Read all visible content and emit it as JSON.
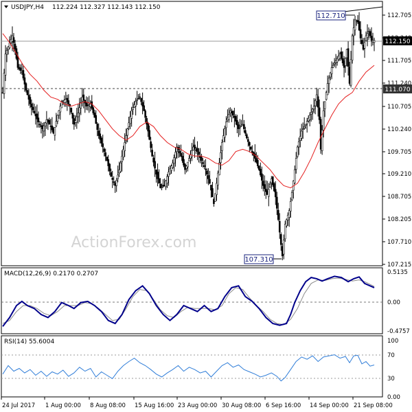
{
  "chart_data": {
    "type": "candlestick",
    "symbol_header": "USDJPY,H4",
    "ohlc": "112.224 112.327 112.143 112.150",
    "watermark": "ActionForex.com",
    "colors": {
      "price": "#000000",
      "ma": "#e41f1f",
      "macd": "#00008b",
      "macd_signal": "#8a8a8a",
      "rsi": "#2f7dd8",
      "horizontal_lines": "#555555",
      "label_bg": "#ffffff",
      "frame": "#000000"
    },
    "x_labels": [
      "24 Jul 2017",
      "1 Aug 00:00",
      "8 Aug 08:00",
      "15 Aug 16:00",
      "23 Aug 00:00",
      "30 Aug 08:00",
      "6 Sep 16:00",
      "14 Sep 00:00",
      "21 Sep 08:00"
    ],
    "price_panel": {
      "ylim": [
        107.215,
        112.705
      ],
      "y_ticks": [
        "112.705",
        "112.240",
        "111.705",
        "111.240",
        "110.705",
        "110.240",
        "109.705",
        "109.210",
        "108.705",
        "108.205",
        "107.710",
        "107.215"
      ],
      "current_price": "112.150",
      "support_level": "111.070",
      "high_label": "112.710",
      "low_label": "107.310",
      "close_path": [
        [
          0,
          111.0
        ],
        [
          4,
          111.85
        ],
        [
          9,
          112.05
        ],
        [
          14,
          112.25
        ],
        [
          18,
          111.95
        ],
        [
          22,
          111.55
        ],
        [
          28,
          111.45
        ],
        [
          34,
          111.05
        ],
        [
          40,
          110.75
        ],
        [
          46,
          110.55
        ],
        [
          52,
          110.35
        ],
        [
          58,
          110.2
        ],
        [
          64,
          110.4
        ],
        [
          70,
          110.25
        ],
        [
          74,
          110.1
        ],
        [
          80,
          110.5
        ],
        [
          86,
          110.8
        ],
        [
          92,
          110.85
        ],
        [
          98,
          110.7
        ],
        [
          104,
          110.3
        ],
        [
          110,
          110.55
        ],
        [
          116,
          110.9
        ],
        [
          122,
          110.7
        ],
        [
          128,
          110.75
        ],
        [
          134,
          110.45
        ],
        [
          140,
          110.05
        ],
        [
          146,
          109.8
        ],
        [
          152,
          109.5
        ],
        [
          158,
          109.15
        ],
        [
          164,
          108.95
        ],
        [
          170,
          109.3
        ],
        [
          176,
          109.75
        ],
        [
          182,
          110.2
        ],
        [
          188,
          110.6
        ],
        [
          194,
          110.8
        ],
        [
          200,
          110.9
        ],
        [
          206,
          110.6
        ],
        [
          212,
          110.15
        ],
        [
          218,
          109.6
        ],
        [
          224,
          109.2
        ],
        [
          230,
          108.9
        ],
        [
          236,
          108.95
        ],
        [
          242,
          109.25
        ],
        [
          248,
          109.45
        ],
        [
          254,
          109.8
        ],
        [
          260,
          109.6
        ],
        [
          266,
          109.3
        ],
        [
          272,
          109.55
        ],
        [
          278,
          109.8
        ],
        [
          284,
          109.7
        ],
        [
          290,
          109.5
        ],
        [
          296,
          109.3
        ],
        [
          302,
          109.0
        ],
        [
          308,
          108.55
        ],
        [
          312,
          109.0
        ],
        [
          316,
          109.45
        ],
        [
          320,
          109.9
        ],
        [
          326,
          110.35
        ],
        [
          332,
          110.6
        ],
        [
          338,
          110.45
        ],
        [
          344,
          110.2
        ],
        [
          350,
          110.3
        ],
        [
          356,
          110.0
        ],
        [
          362,
          109.75
        ],
        [
          368,
          109.55
        ],
        [
          374,
          109.3
        ],
        [
          380,
          108.95
        ],
        [
          386,
          108.75
        ],
        [
          392,
          109.1
        ],
        [
          398,
          108.7
        ],
        [
          402,
          108.2
        ],
        [
          406,
          107.65
        ],
        [
          408,
          107.4
        ],
        [
          412,
          108.1
        ],
        [
          418,
          108.4
        ],
        [
          422,
          108.8
        ],
        [
          426,
          109.3
        ],
        [
          430,
          109.8
        ],
        [
          436,
          110.15
        ],
        [
          442,
          110.3
        ],
        [
          448,
          110.5
        ],
        [
          454,
          110.7
        ],
        [
          458,
          110.95
        ],
        [
          462,
          110.4
        ],
        [
          464,
          109.75
        ],
        [
          468,
          110.6
        ],
        [
          474,
          111.2
        ],
        [
          480,
          111.55
        ],
        [
          486,
          111.7
        ],
        [
          492,
          111.85
        ],
        [
          498,
          111.55
        ],
        [
          502,
          111.95
        ],
        [
          506,
          111.2
        ],
        [
          510,
          112.25
        ],
        [
          514,
          112.6
        ],
        [
          518,
          112.55
        ],
        [
          522,
          112.2
        ],
        [
          526,
          111.95
        ],
        [
          530,
          112.25
        ],
        [
          534,
          112.35
        ],
        [
          538,
          112.15
        ],
        [
          542,
          112.15
        ]
      ],
      "moving_average": [
        [
          0,
          112.3
        ],
        [
          10,
          112.1
        ],
        [
          20,
          111.85
        ],
        [
          30,
          111.6
        ],
        [
          40,
          111.4
        ],
        [
          50,
          111.25
        ],
        [
          60,
          111.05
        ],
        [
          70,
          110.9
        ],
        [
          80,
          110.85
        ],
        [
          90,
          110.75
        ],
        [
          100,
          110.7
        ],
        [
          110,
          110.75
        ],
        [
          120,
          110.8
        ],
        [
          130,
          110.75
        ],
        [
          140,
          110.6
        ],
        [
          150,
          110.4
        ],
        [
          160,
          110.2
        ],
        [
          170,
          110.05
        ],
        [
          180,
          109.95
        ],
        [
          190,
          110.05
        ],
        [
          200,
          110.25
        ],
        [
          210,
          110.35
        ],
        [
          220,
          110.25
        ],
        [
          230,
          110.05
        ],
        [
          240,
          109.9
        ],
        [
          250,
          109.8
        ],
        [
          260,
          109.75
        ],
        [
          270,
          109.65
        ],
        [
          280,
          109.6
        ],
        [
          290,
          109.6
        ],
        [
          300,
          109.55
        ],
        [
          310,
          109.45
        ],
        [
          320,
          109.4
        ],
        [
          330,
          109.5
        ],
        [
          340,
          109.7
        ],
        [
          350,
          109.75
        ],
        [
          360,
          109.7
        ],
        [
          370,
          109.6
        ],
        [
          380,
          109.45
        ],
        [
          390,
          109.3
        ],
        [
          400,
          109.1
        ],
        [
          410,
          108.95
        ],
        [
          420,
          108.9
        ],
        [
          430,
          109.0
        ],
        [
          440,
          109.25
        ],
        [
          450,
          109.55
        ],
        [
          460,
          109.9
        ],
        [
          470,
          110.2
        ],
        [
          480,
          110.5
        ],
        [
          490,
          110.75
        ],
        [
          500,
          110.9
        ],
        [
          510,
          111.0
        ],
        [
          520,
          111.25
        ],
        [
          530,
          111.45
        ],
        [
          542,
          111.6
        ]
      ]
    },
    "macd_panel": {
      "label": "MACD(12,26,9) 0.2170 0.2707",
      "ylim": [
        -0.4757,
        0.5135
      ],
      "y_ticks": [
        "0.5135",
        "0.00",
        "-0.4757"
      ],
      "macd_path": [
        [
          0,
          -0.4
        ],
        [
          10,
          -0.25
        ],
        [
          20,
          -0.05
        ],
        [
          28,
          0.02
        ],
        [
          36,
          -0.05
        ],
        [
          46,
          -0.1
        ],
        [
          56,
          -0.2
        ],
        [
          66,
          -0.25
        ],
        [
          76,
          -0.15
        ],
        [
          86,
          0.0
        ],
        [
          96,
          -0.05
        ],
        [
          104,
          -0.1
        ],
        [
          114,
          0.0
        ],
        [
          124,
          0.02
        ],
        [
          134,
          -0.05
        ],
        [
          144,
          -0.15
        ],
        [
          154,
          -0.3
        ],
        [
          164,
          -0.35
        ],
        [
          174,
          -0.2
        ],
        [
          184,
          0.05
        ],
        [
          194,
          0.2
        ],
        [
          204,
          0.28
        ],
        [
          214,
          0.15
        ],
        [
          224,
          -0.05
        ],
        [
          234,
          -0.2
        ],
        [
          244,
          -0.3
        ],
        [
          254,
          -0.2
        ],
        [
          264,
          -0.05
        ],
        [
          274,
          -0.1
        ],
        [
          284,
          -0.15
        ],
        [
          294,
          -0.05
        ],
        [
          304,
          -0.15
        ],
        [
          314,
          -0.1
        ],
        [
          324,
          0.1
        ],
        [
          334,
          0.25
        ],
        [
          344,
          0.28
        ],
        [
          354,
          0.1
        ],
        [
          364,
          0.02
        ],
        [
          374,
          -0.1
        ],
        [
          384,
          -0.25
        ],
        [
          394,
          -0.35
        ],
        [
          404,
          -0.38
        ],
        [
          414,
          -0.35
        ],
        [
          420,
          -0.2
        ],
        [
          426,
          0.0
        ],
        [
          434,
          0.2
        ],
        [
          442,
          0.35
        ],
        [
          450,
          0.42
        ],
        [
          458,
          0.4
        ],
        [
          466,
          0.36
        ],
        [
          474,
          0.4
        ],
        [
          484,
          0.44
        ],
        [
          494,
          0.42
        ],
        [
          504,
          0.35
        ],
        [
          512,
          0.4
        ],
        [
          520,
          0.43
        ],
        [
          528,
          0.32
        ],
        [
          536,
          0.28
        ],
        [
          542,
          0.25
        ]
      ],
      "signal_path": [
        [
          0,
          -0.35
        ],
        [
          10,
          -0.3
        ],
        [
          20,
          -0.15
        ],
        [
          30,
          -0.05
        ],
        [
          40,
          -0.05
        ],
        [
          50,
          -0.1
        ],
        [
          60,
          -0.18
        ],
        [
          70,
          -0.22
        ],
        [
          80,
          -0.15
        ],
        [
          90,
          -0.05
        ],
        [
          100,
          -0.05
        ],
        [
          110,
          -0.05
        ],
        [
          120,
          0.0
        ],
        [
          130,
          -0.02
        ],
        [
          140,
          -0.1
        ],
        [
          150,
          -0.2
        ],
        [
          160,
          -0.3
        ],
        [
          170,
          -0.28
        ],
        [
          180,
          -0.1
        ],
        [
          190,
          0.1
        ],
        [
          200,
          0.22
        ],
        [
          210,
          0.2
        ],
        [
          220,
          0.05
        ],
        [
          230,
          -0.12
        ],
        [
          240,
          -0.22
        ],
        [
          250,
          -0.25
        ],
        [
          260,
          -0.15
        ],
        [
          270,
          -0.08
        ],
        [
          280,
          -0.1
        ],
        [
          290,
          -0.1
        ],
        [
          300,
          -0.1
        ],
        [
          310,
          -0.12
        ],
        [
          320,
          -0.05
        ],
        [
          330,
          0.15
        ],
        [
          340,
          0.25
        ],
        [
          350,
          0.22
        ],
        [
          360,
          0.08
        ],
        [
          370,
          -0.05
        ],
        [
          380,
          -0.15
        ],
        [
          390,
          -0.28
        ],
        [
          400,
          -0.35
        ],
        [
          410,
          -0.37
        ],
        [
          420,
          -0.28
        ],
        [
          430,
          -0.1
        ],
        [
          440,
          0.15
        ],
        [
          450,
          0.32
        ],
        [
          460,
          0.38
        ],
        [
          470,
          0.37
        ],
        [
          480,
          0.4
        ],
        [
          490,
          0.41
        ],
        [
          500,
          0.39
        ],
        [
          510,
          0.36
        ],
        [
          520,
          0.38
        ],
        [
          530,
          0.34
        ],
        [
          542,
          0.27
        ]
      ]
    },
    "rsi_panel": {
      "label": "RSI(14) 55.6004",
      "ylim": [
        0,
        100
      ],
      "y_ticks": [
        "100",
        "70",
        "30",
        "0.00"
      ],
      "rsi_path": [
        [
          0,
          40
        ],
        [
          8,
          55
        ],
        [
          16,
          45
        ],
        [
          24,
          50
        ],
        [
          32,
          42
        ],
        [
          40,
          48
        ],
        [
          48,
          38
        ],
        [
          56,
          45
        ],
        [
          64,
          36
        ],
        [
          72,
          44
        ],
        [
          80,
          40
        ],
        [
          88,
          47
        ],
        [
          96,
          36
        ],
        [
          104,
          42
        ],
        [
          112,
          52
        ],
        [
          120,
          45
        ],
        [
          128,
          50
        ],
        [
          136,
          35
        ],
        [
          144,
          44
        ],
        [
          152,
          38
        ],
        [
          160,
          32
        ],
        [
          168,
          45
        ],
        [
          176,
          55
        ],
        [
          184,
          62
        ],
        [
          192,
          68
        ],
        [
          200,
          60
        ],
        [
          208,
          55
        ],
        [
          216,
          48
        ],
        [
          224,
          40
        ],
        [
          232,
          35
        ],
        [
          240,
          42
        ],
        [
          248,
          48
        ],
        [
          256,
          55
        ],
        [
          264,
          45
        ],
        [
          272,
          52
        ],
        [
          280,
          48
        ],
        [
          288,
          42
        ],
        [
          296,
          45
        ],
        [
          304,
          35
        ],
        [
          312,
          45
        ],
        [
          320,
          55
        ],
        [
          328,
          60
        ],
        [
          336,
          52
        ],
        [
          344,
          56
        ],
        [
          352,
          48
        ],
        [
          360,
          44
        ],
        [
          368,
          40
        ],
        [
          376,
          35
        ],
        [
          384,
          38
        ],
        [
          392,
          42
        ],
        [
          400,
          36
        ],
        [
          406,
          28
        ],
        [
          412,
          34
        ],
        [
          420,
          48
        ],
        [
          428,
          62
        ],
        [
          436,
          70
        ],
        [
          444,
          66
        ],
        [
          452,
          72
        ],
        [
          460,
          62
        ],
        [
          468,
          70
        ],
        [
          476,
          72
        ],
        [
          484,
          74
        ],
        [
          492,
          68
        ],
        [
          500,
          71
        ],
        [
          506,
          60
        ],
        [
          512,
          72
        ],
        [
          518,
          73
        ],
        [
          524,
          58
        ],
        [
          530,
          62
        ],
        [
          536,
          54
        ],
        [
          542,
          56
        ]
      ]
    }
  }
}
